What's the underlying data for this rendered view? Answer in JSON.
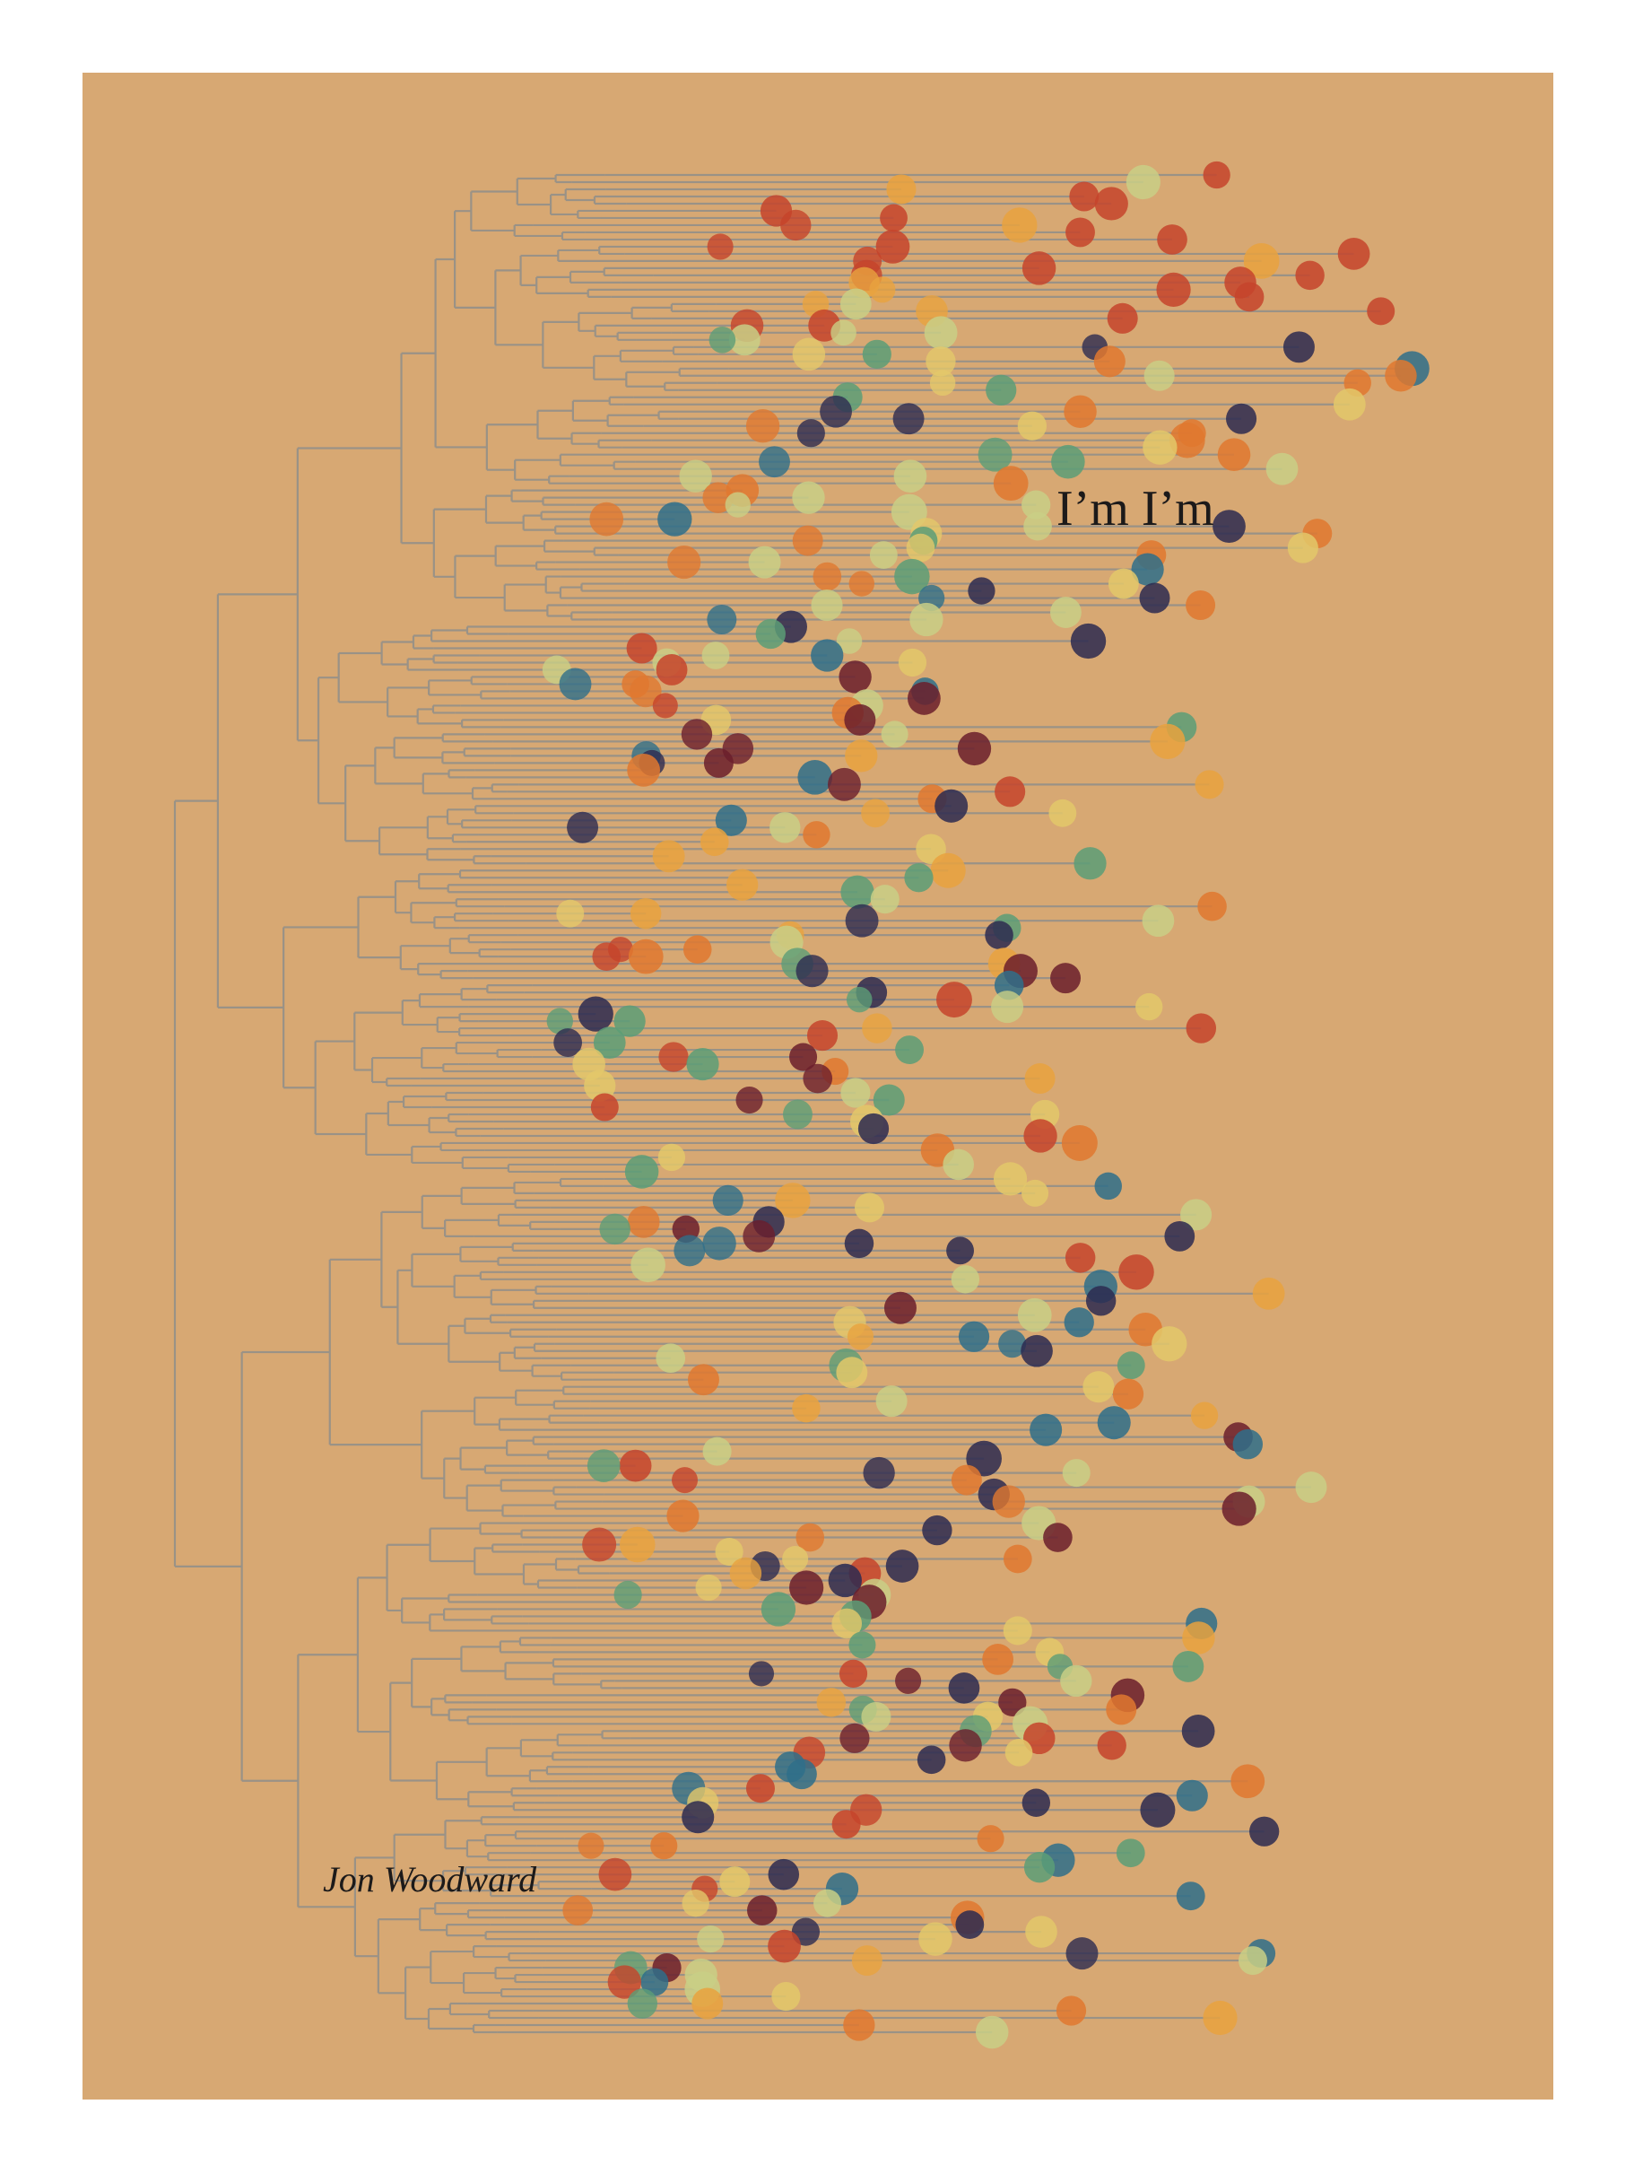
{
  "cover": {
    "title": "I’m I’m",
    "author": "Jon Woodward"
  }
}
